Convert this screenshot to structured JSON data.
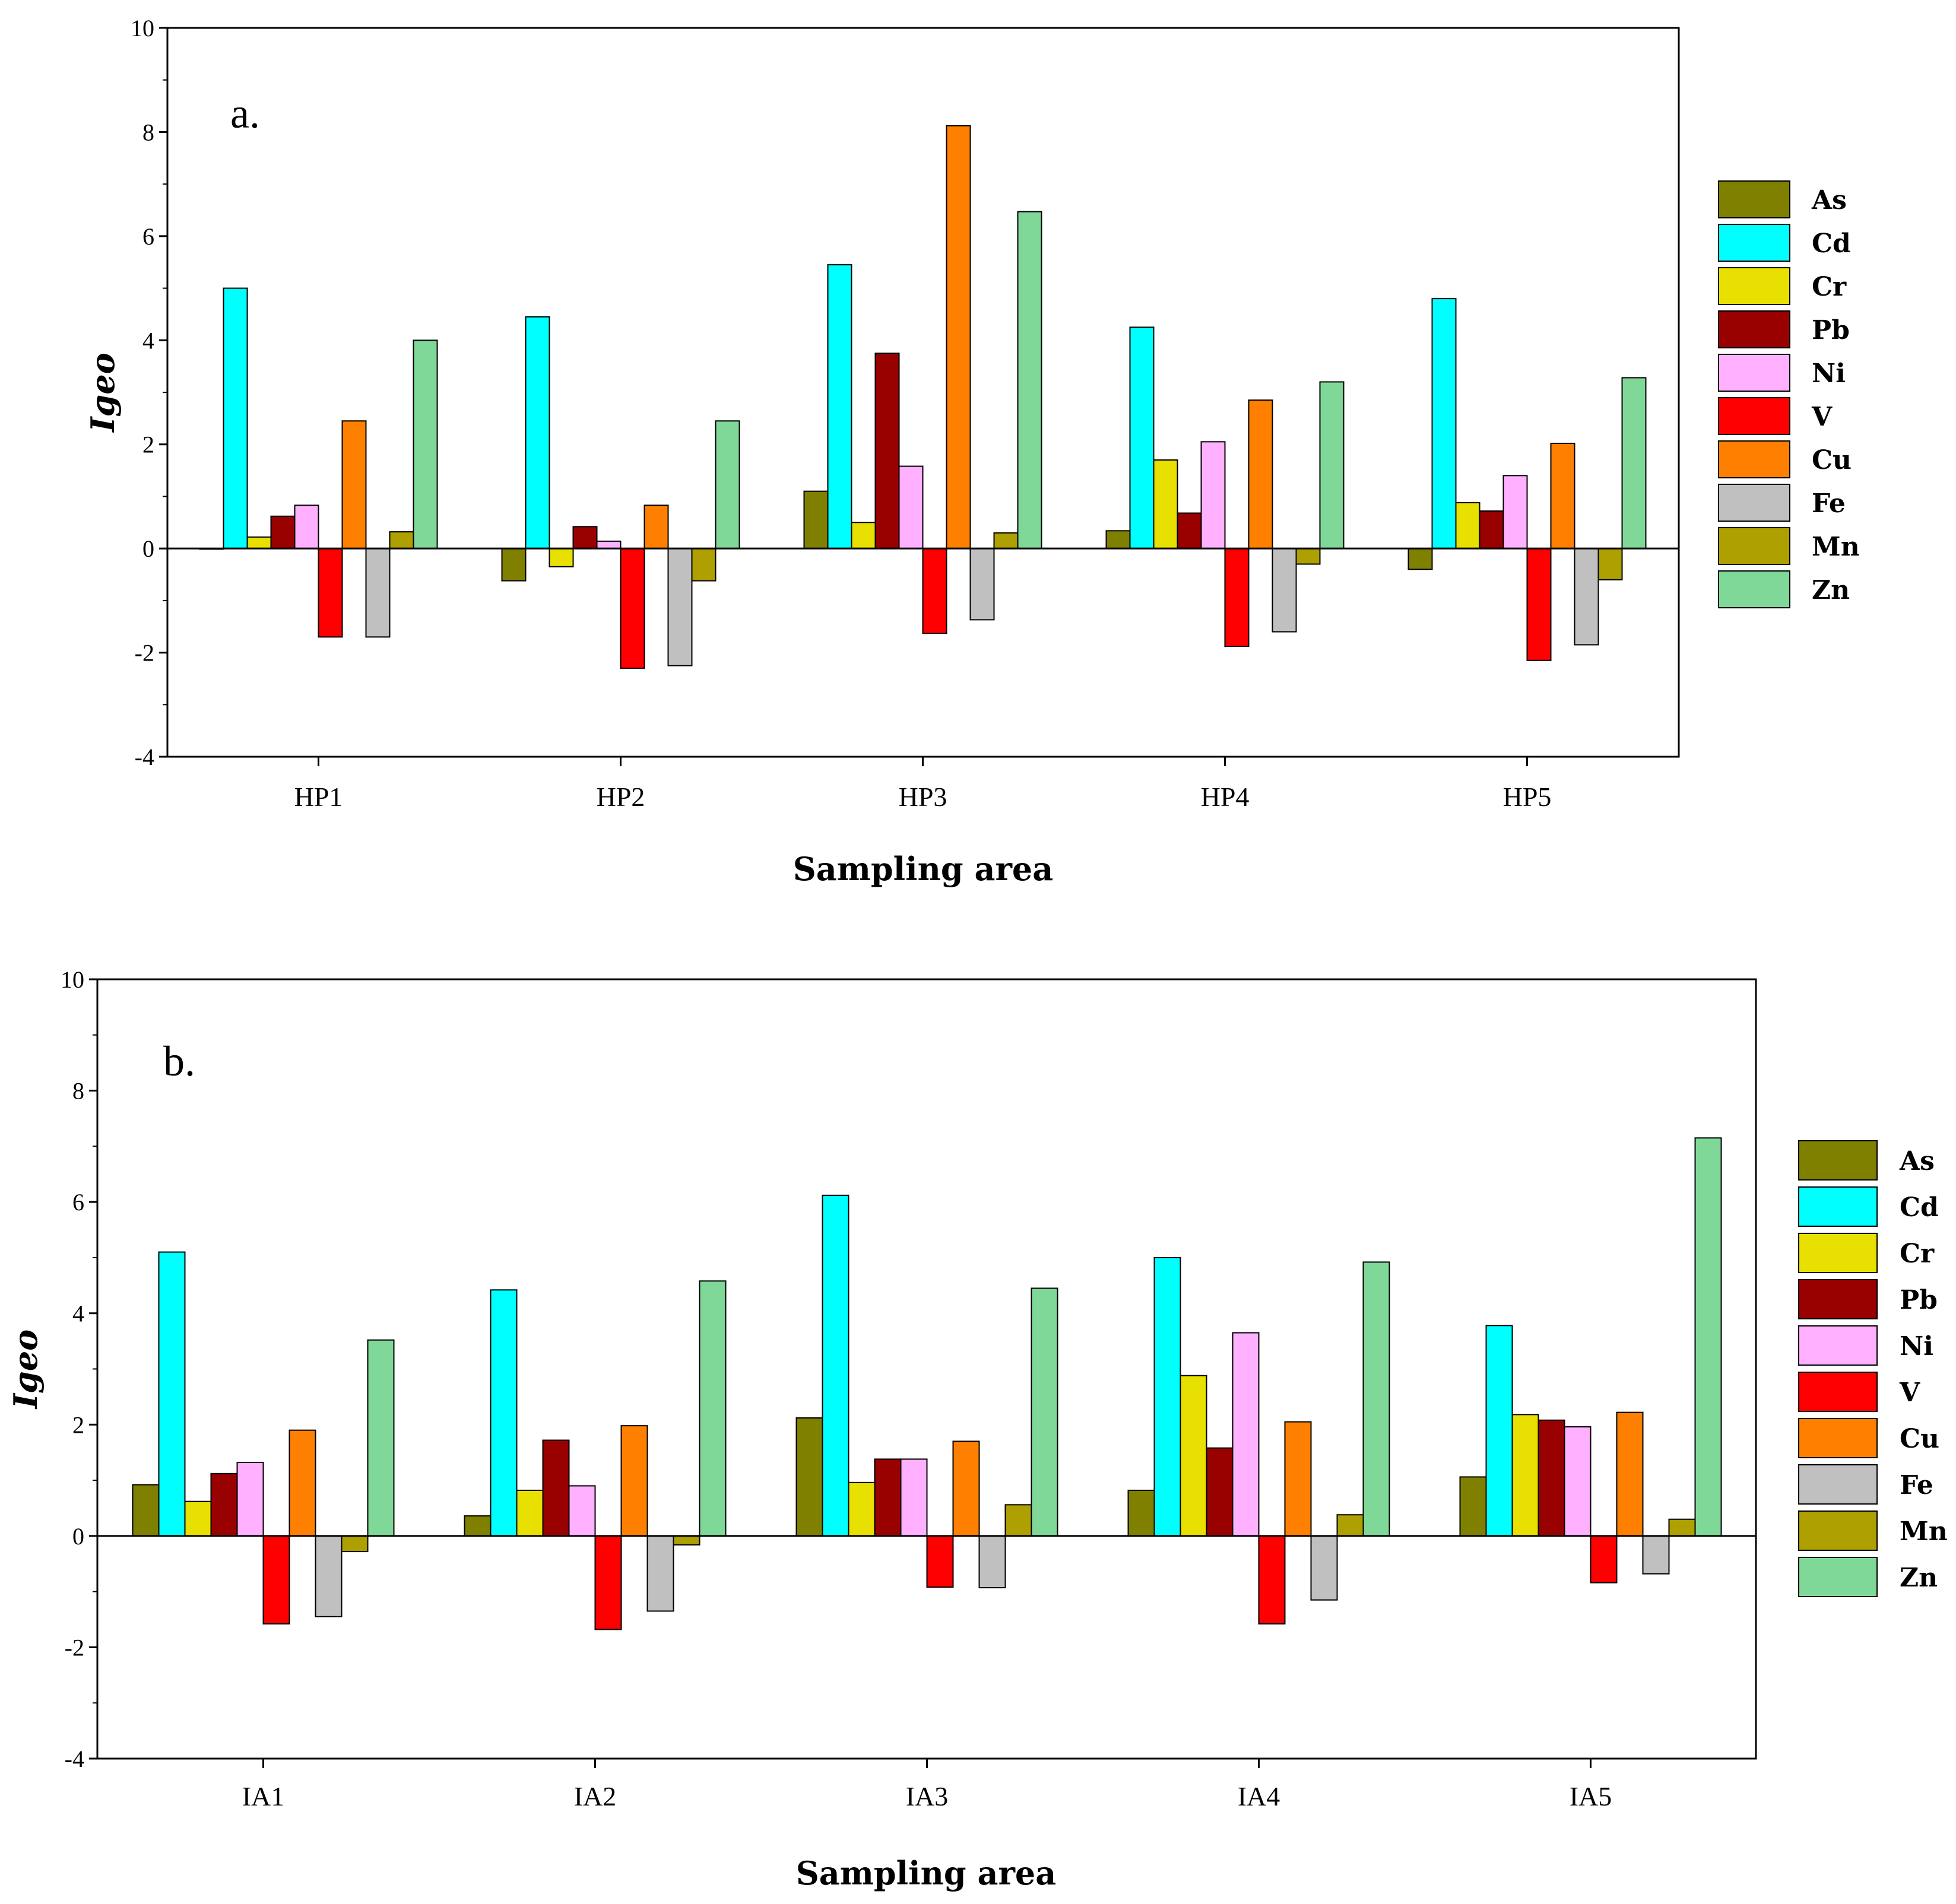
{
  "chart_data": [
    {
      "type": "bar",
      "panel_label": "a.",
      "categories": [
        "HP1",
        "HP2",
        "HP3",
        "HP4",
        "HP5"
      ],
      "xlabel": "Sampling area",
      "ylabel": "Igeo",
      "ylim": [
        -4,
        10
      ],
      "yticks": [
        -4,
        -2,
        0,
        2,
        4,
        6,
        8,
        10
      ],
      "legend_position": "right",
      "series": [
        {
          "name": "As",
          "color": "#808000",
          "values": [
            0.0,
            -0.62,
            1.1,
            0.34,
            -0.4
          ]
        },
        {
          "name": "Cd",
          "color": "#00FFFF",
          "values": [
            5.0,
            4.45,
            5.45,
            4.25,
            4.8
          ]
        },
        {
          "name": "Cr",
          "color": "#E8E000",
          "values": [
            0.22,
            -0.35,
            0.5,
            1.7,
            0.88
          ]
        },
        {
          "name": "Pb",
          "color": "#990000",
          "values": [
            0.62,
            0.42,
            3.75,
            0.68,
            0.72
          ]
        },
        {
          "name": "Ni",
          "color": "#FFB0FF",
          "values": [
            0.83,
            0.14,
            1.58,
            2.05,
            1.4
          ]
        },
        {
          "name": "V",
          "color": "#FF0000",
          "values": [
            -1.7,
            -2.3,
            -1.63,
            -1.88,
            -2.15
          ]
        },
        {
          "name": "Cu",
          "color": "#FF8000",
          "values": [
            2.45,
            0.83,
            8.12,
            2.85,
            2.02
          ]
        },
        {
          "name": "Fe",
          "color": "#C0C0C0",
          "values": [
            -1.7,
            -2.25,
            -1.37,
            -1.6,
            -1.85
          ]
        },
        {
          "name": "Mn",
          "color": "#ADA000",
          "values": [
            0.32,
            -0.62,
            0.3,
            -0.3,
            -0.6
          ]
        },
        {
          "name": "Zn",
          "color": "#80D898",
          "values": [
            4.0,
            2.45,
            6.47,
            3.2,
            3.28
          ]
        }
      ]
    },
    {
      "type": "bar",
      "panel_label": "b.",
      "categories": [
        "IA1",
        "IA2",
        "IA3",
        "IA4",
        "IA5"
      ],
      "xlabel": "Sampling area",
      "ylabel": "Igeo",
      "ylim": [
        -4,
        10
      ],
      "yticks": [
        -4,
        -2,
        0,
        2,
        4,
        6,
        8,
        10
      ],
      "legend_position": "right",
      "series": [
        {
          "name": "As",
          "color": "#808000",
          "values": [
            0.92,
            0.36,
            2.12,
            0.82,
            1.06
          ]
        },
        {
          "name": "Cd",
          "color": "#00FFFF",
          "values": [
            5.1,
            4.42,
            6.12,
            5.0,
            3.78
          ]
        },
        {
          "name": "Cr",
          "color": "#E8E000",
          "values": [
            0.62,
            0.82,
            0.96,
            2.88,
            2.18
          ]
        },
        {
          "name": "Pb",
          "color": "#990000",
          "values": [
            1.12,
            1.72,
            1.38,
            1.58,
            2.08
          ]
        },
        {
          "name": "Ni",
          "color": "#FFB0FF",
          "values": [
            1.32,
            0.9,
            1.38,
            3.65,
            1.96
          ]
        },
        {
          "name": "V",
          "color": "#FF0000",
          "values": [
            -1.58,
            -1.68,
            -0.92,
            -1.58,
            -0.84
          ]
        },
        {
          "name": "Cu",
          "color": "#FF8000",
          "values": [
            1.9,
            1.98,
            1.7,
            2.05,
            2.22
          ]
        },
        {
          "name": "Fe",
          "color": "#C0C0C0",
          "values": [
            -1.45,
            -1.35,
            -0.93,
            -1.15,
            -0.68
          ]
        },
        {
          "name": "Mn",
          "color": "#ADA000",
          "values": [
            -0.28,
            -0.16,
            0.56,
            0.38,
            0.3
          ]
        },
        {
          "name": "Zn",
          "color": "#80D898",
          "values": [
            3.52,
            4.58,
            4.45,
            4.92,
            7.15
          ]
        }
      ]
    }
  ]
}
